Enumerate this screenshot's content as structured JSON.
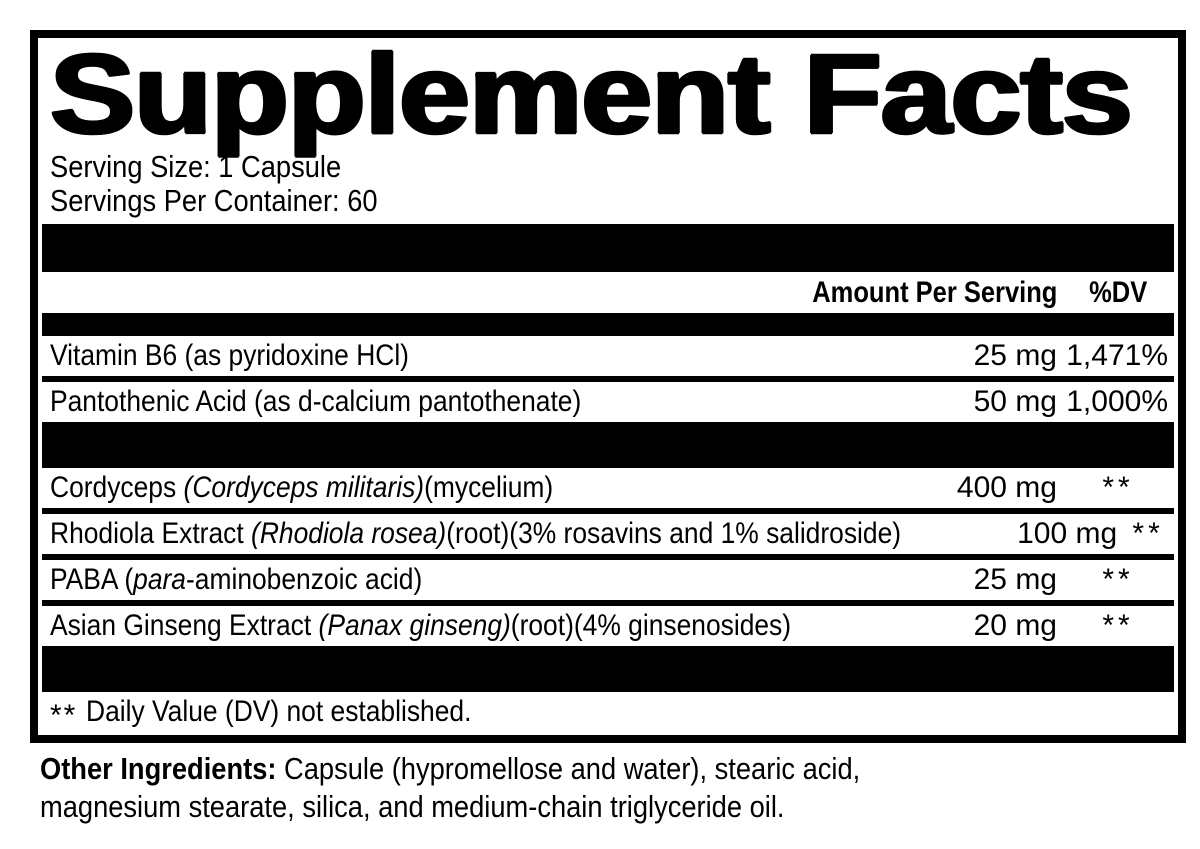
{
  "colors": {
    "ink": "#000000",
    "background": "#ffffff"
  },
  "label": {
    "title": "Supplement Facts",
    "serving_size": "Serving Size: 1 Capsule",
    "servings_per_container": "Servings Per Container: 60",
    "columns": {
      "amount": "Amount Per Serving",
      "dv": "%DV"
    },
    "rows": [
      {
        "group": "vitamins",
        "name_parts": [
          {
            "text": "Vitamin B6 (as pyridoxine HCl)",
            "italic": false
          }
        ],
        "amount": "25 mg",
        "dv": "1,471%"
      },
      {
        "group": "vitamins",
        "name_parts": [
          {
            "text": "Pantothenic Acid (as d-calcium pantothenate)",
            "italic": false
          }
        ],
        "amount": "50 mg",
        "dv": "1,000%"
      },
      {
        "group": "botanicals",
        "name_parts": [
          {
            "text": "Cordyceps ",
            "italic": false
          },
          {
            "text": "(Cordyceps militaris)",
            "italic": true
          },
          {
            "text": "(mycelium)",
            "italic": false
          }
        ],
        "amount": "400 mg",
        "dv": "**"
      },
      {
        "group": "botanicals",
        "name_parts": [
          {
            "text": "Rhodiola Extract ",
            "italic": false
          },
          {
            "text": "(Rhodiola rosea)",
            "italic": true
          },
          {
            "text": "(root)(3% rosavins and 1% salidroside)",
            "italic": false
          }
        ],
        "amount": "100 mg",
        "dv": "**"
      },
      {
        "group": "botanicals",
        "name_parts": [
          {
            "text": "PABA (",
            "italic": false
          },
          {
            "text": "para",
            "italic": true
          },
          {
            "text": "-aminobenzoic acid)",
            "italic": false
          }
        ],
        "amount": "25 mg",
        "dv": "**"
      },
      {
        "group": "botanicals",
        "name_parts": [
          {
            "text": "Asian Ginseng Extract ",
            "italic": false
          },
          {
            "text": "(Panax ginseng)",
            "italic": true
          },
          {
            "text": "(root)(4% ginsenosides)",
            "italic": false
          }
        ],
        "amount": "20 mg",
        "dv": "**"
      }
    ],
    "footnote_marks": "**",
    "footnote_text": "Daily Value (DV) not established.",
    "other_ingredients_label": "Other Ingredients:",
    "other_ingredients_text": "Capsule (hypromellose and water), stearic acid, magnesium stearate, silica, and medium-chain triglyceride oil."
  }
}
